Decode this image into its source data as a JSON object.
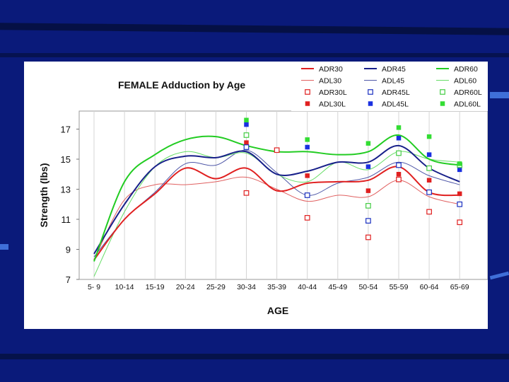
{
  "slide": {
    "background_color": "#0a1a7a"
  },
  "chart_data": {
    "type": "line",
    "title": "FEMALE Adduction by Age",
    "xlabel": "AGE",
    "ylabel": "Strength (lbs)",
    "ylim": [
      7,
      18.2
    ],
    "yticks": [
      7,
      9,
      11,
      13,
      15,
      17
    ],
    "grid": "vertical",
    "legend_position": "top-right",
    "categories": [
      "5- 9",
      "10-14",
      "15-19",
      "20-24",
      "25-29",
      "30-34",
      "35-39",
      "40-44",
      "45-49",
      "50-54",
      "55-59",
      "60-64",
      "65-69"
    ],
    "series": [
      {
        "name": "ADR30",
        "kind": "line",
        "color": "#e02020",
        "width": 2,
        "values": [
          8.3,
          11.0,
          12.7,
          14.4,
          13.7,
          14.4,
          12.9,
          13.4,
          13.5,
          13.6,
          14.5,
          12.8,
          12.6
        ]
      },
      {
        "name": "ADR45",
        "kind": "line",
        "color": "#18208a",
        "width": 2,
        "values": [
          8.7,
          12.0,
          14.5,
          15.2,
          15.1,
          15.5,
          14.0,
          14.2,
          14.8,
          14.8,
          15.9,
          14.4,
          13.5
        ]
      },
      {
        "name": "ADR60",
        "kind": "line",
        "color": "#22cc22",
        "width": 2,
        "values": [
          8.2,
          13.5,
          15.3,
          16.3,
          16.5,
          15.9,
          15.5,
          15.5,
          15.3,
          15.5,
          16.6,
          15.0,
          14.6
        ]
      },
      {
        "name": "ADL30",
        "kind": "line",
        "color": "#e06060",
        "width": 1,
        "values": [
          8.3,
          12.3,
          13.3,
          13.3,
          13.5,
          13.8,
          13.0,
          12.2,
          12.6,
          12.5,
          13.6,
          12.5,
          12.0
        ]
      },
      {
        "name": "ADL45",
        "kind": "line",
        "color": "#5058a8",
        "width": 1,
        "values": [
          8.5,
          11.0,
          12.8,
          14.7,
          14.6,
          15.6,
          14.1,
          12.6,
          13.4,
          13.8,
          14.8,
          13.9,
          13.3
        ]
      },
      {
        "name": "ADL60",
        "kind": "line",
        "color": "#66dd66",
        "width": 1,
        "values": [
          7.2,
          11.5,
          14.5,
          15.5,
          15.1,
          15.4,
          14.0,
          13.5,
          14.8,
          14.3,
          15.5,
          15.0,
          14.8
        ]
      },
      {
        "name": "ADR30L",
        "kind": "open-square",
        "color": "#e02020",
        "points": [
          [
            "30-34",
            12.75
          ],
          [
            "35-39",
            15.6
          ],
          [
            "40-44",
            11.1
          ],
          [
            "50-54",
            9.8
          ],
          [
            "55-59",
            13.65
          ],
          [
            "60-64",
            11.5
          ],
          [
            "65-69",
            10.8
          ]
        ]
      },
      {
        "name": "ADL30L",
        "kind": "filled-square",
        "color": "#e02020",
        "points": [
          [
            "30-34",
            16.1
          ],
          [
            "40-44",
            13.9
          ],
          [
            "50-54",
            12.9
          ],
          [
            "55-59",
            14.0
          ],
          [
            "60-64",
            13.6
          ],
          [
            "65-69",
            12.7
          ]
        ]
      },
      {
        "name": "ADR45L",
        "kind": "open-square",
        "color": "#1a30c0",
        "points": [
          [
            "30-34",
            15.8
          ],
          [
            "40-44",
            12.6
          ],
          [
            "50-54",
            10.9
          ],
          [
            "55-59",
            14.6
          ],
          [
            "60-64",
            12.8
          ],
          [
            "65-69",
            12.0
          ]
        ]
      },
      {
        "name": "ADL45L",
        "kind": "filled-square",
        "color": "#1a30e0",
        "points": [
          [
            "30-34",
            17.3
          ],
          [
            "40-44",
            15.8
          ],
          [
            "50-54",
            14.5
          ],
          [
            "55-59",
            16.4
          ],
          [
            "60-64",
            15.3
          ],
          [
            "65-69",
            14.3
          ]
        ]
      },
      {
        "name": "ADR60L",
        "kind": "open-square",
        "color": "#44cc44",
        "points": [
          [
            "30-34",
            16.6
          ],
          [
            "50-54",
            11.9
          ],
          [
            "55-59",
            15.4
          ],
          [
            "60-64",
            14.4
          ],
          [
            "65-69",
            14.6
          ]
        ]
      },
      {
        "name": "ADL60L",
        "kind": "filled-square",
        "color": "#33dd33",
        "points": [
          [
            "30-34",
            17.6
          ],
          [
            "40-44",
            16.3
          ],
          [
            "50-54",
            16.05
          ],
          [
            "55-59",
            17.1
          ],
          [
            "60-64",
            16.5
          ],
          [
            "65-69",
            14.7
          ]
        ]
      }
    ],
    "legend_order": [
      "ADR30",
      "ADR45",
      "ADR60",
      "ADL30",
      "ADL45",
      "ADL60",
      "ADR30L",
      "ADR45L",
      "ADR60L",
      "ADL30L",
      "ADL45L",
      "ADL60L"
    ]
  }
}
